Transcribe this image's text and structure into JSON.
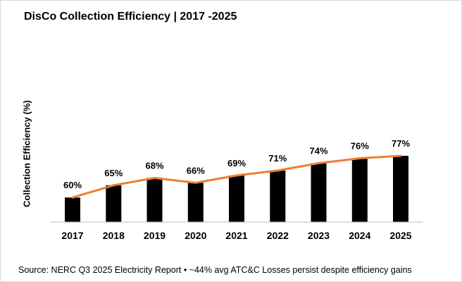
{
  "title": "DisCo Collection Efficiency | 2017 -2025",
  "source_note": "Source: NERC Q3 2025 Electricity Report  • ~44% avg ATC&C  Losses persist despite efficiency gains",
  "colors": {
    "bar": "#000000",
    "line": "#ed7d31",
    "axis": "#bfbfbf",
    "frame": "#d9d9d9"
  },
  "chart_data": {
    "type": "bar",
    "categories": [
      "2017",
      "2018",
      "2019",
      "2020",
      "2021",
      "2022",
      "2023",
      "2024",
      "2025"
    ],
    "values": [
      60,
      65,
      68,
      66,
      69,
      71,
      74,
      76,
      77
    ],
    "data_labels": [
      "60%",
      "65%",
      "68%",
      "66%",
      "69%",
      "71%",
      "74%",
      "76%",
      "77%"
    ],
    "overlay_line": {
      "type": "line",
      "values": [
        60,
        65,
        68,
        66,
        69,
        71,
        74,
        76,
        77
      ]
    },
    "title": "DisCo Collection Efficiency | 2017 -2025",
    "xlabel": "",
    "ylabel": "Collection Efficiency (%)",
    "ylim": [
      50,
      80
    ],
    "grid": false,
    "legend": "none"
  }
}
